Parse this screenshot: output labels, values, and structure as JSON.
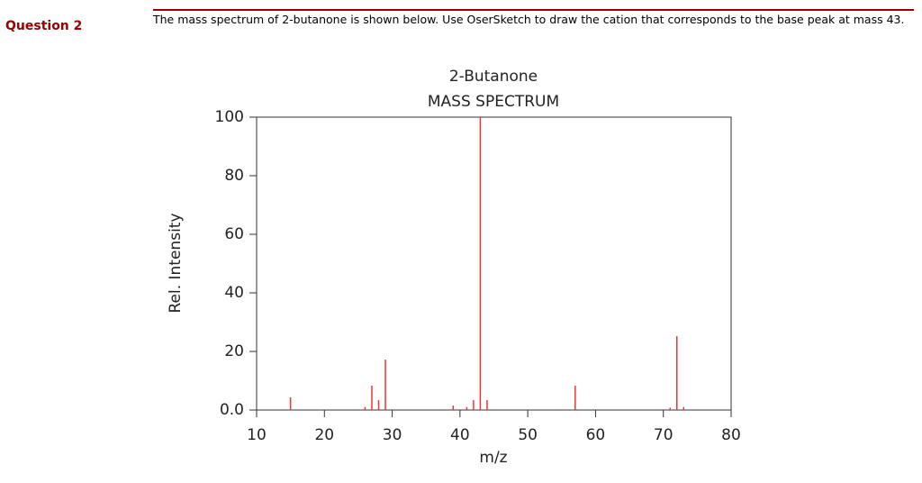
{
  "question": {
    "label": "Question 2",
    "text": "The mass spectrum of 2-butanone is shown below.  Use OserSketch to draw the cation that corresponds to the base peak at mass 43."
  },
  "chart_data": {
    "type": "stem",
    "title": "2-Butanone",
    "subtitle": "MASS SPECTRUM",
    "x_label": "m/z",
    "y_label": "Rel. Intensity",
    "x": [
      15,
      26,
      27,
      28,
      29,
      39,
      41,
      42,
      43,
      44,
      57,
      71,
      72,
      73
    ],
    "values": [
      4.3,
      1,
      8.3,
      3.4,
      17.2,
      1.5,
      1,
      3.4,
      100,
      3.4,
      8.3,
      0.8,
      25.2,
      1
    ],
    "color": "#ee3333",
    "xlim": [
      10,
      80
    ],
    "xticks": [
      10,
      20,
      30,
      40,
      50,
      60,
      70,
      80
    ],
    "ylim": [
      0,
      100
    ],
    "yticks": [
      {
        "value": 0,
        "label": "0.0"
      },
      20,
      40,
      60,
      80,
      100
    ]
  }
}
